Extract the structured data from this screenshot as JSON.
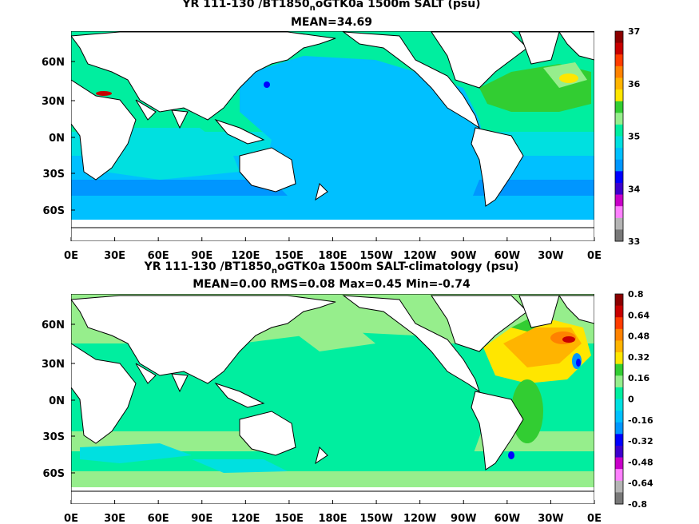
{
  "panels": [
    {
      "title_line1": "YR 111-130 /BT1850",
      "title_sub": "n",
      "title_line1_rest": "oGTK0a 1500m SALT (psu)",
      "title_line2": "MEAN=34.69",
      "lat_labels": [
        "60N",
        "30N",
        "0N",
        "30S",
        "60S"
      ],
      "lon_labels": [
        "0E",
        "30E",
        "60E",
        "90E",
        "120E",
        "150E",
        "180E",
        "150W",
        "120W",
        "90W",
        "60W",
        "30W",
        "0E"
      ],
      "colorbar": {
        "labels": [
          "37",
          "36",
          "35",
          "34",
          "33"
        ],
        "colors": [
          "#8b0000",
          "#c80000",
          "#ff3c00",
          "#ff8200",
          "#ffb400",
          "#ffe600",
          "#32cd32",
          "#96ee8c",
          "#00ee9f",
          "#00e0e0",
          "#00c0ff",
          "#0096ff",
          "#0000ff",
          "#3c00cd",
          "#c800c8",
          "#ff80ff",
          "#b4b4b4",
          "#787878"
        ]
      }
    },
    {
      "title_line1": "YR 111-130 /BT1850",
      "title_sub": "n",
      "title_line1_rest": "oGTK0a 1500m SALT-climatology (psu)",
      "title_line2": "MEAN=0.00   RMS=0.08   Max=0.45   Min=-0.74",
      "lat_labels": [
        "60N",
        "30N",
        "0N",
        "30S",
        "60S"
      ],
      "lon_labels": [
        "0E",
        "30E",
        "60E",
        "90E",
        "120E",
        "150E",
        "180E",
        "150W",
        "120W",
        "90W",
        "60W",
        "30W",
        "0E"
      ],
      "colorbar": {
        "labels": [
          "0.8",
          "0.64",
          "0.48",
          "0.32",
          "0.16",
          "0",
          "-0.16",
          "-0.32",
          "-0.48",
          "-0.64",
          "-0.8"
        ],
        "colors": [
          "#8b0000",
          "#c80000",
          "#ff3c00",
          "#ff8200",
          "#ffb400",
          "#ffe600",
          "#32cd32",
          "#96ee8c",
          "#00ee9f",
          "#00e0e0",
          "#00c0ff",
          "#0096ff",
          "#0000ff",
          "#3c00cd",
          "#c800c8",
          "#ff80ff",
          "#b4b4b4",
          "#787878"
        ]
      }
    }
  ]
}
